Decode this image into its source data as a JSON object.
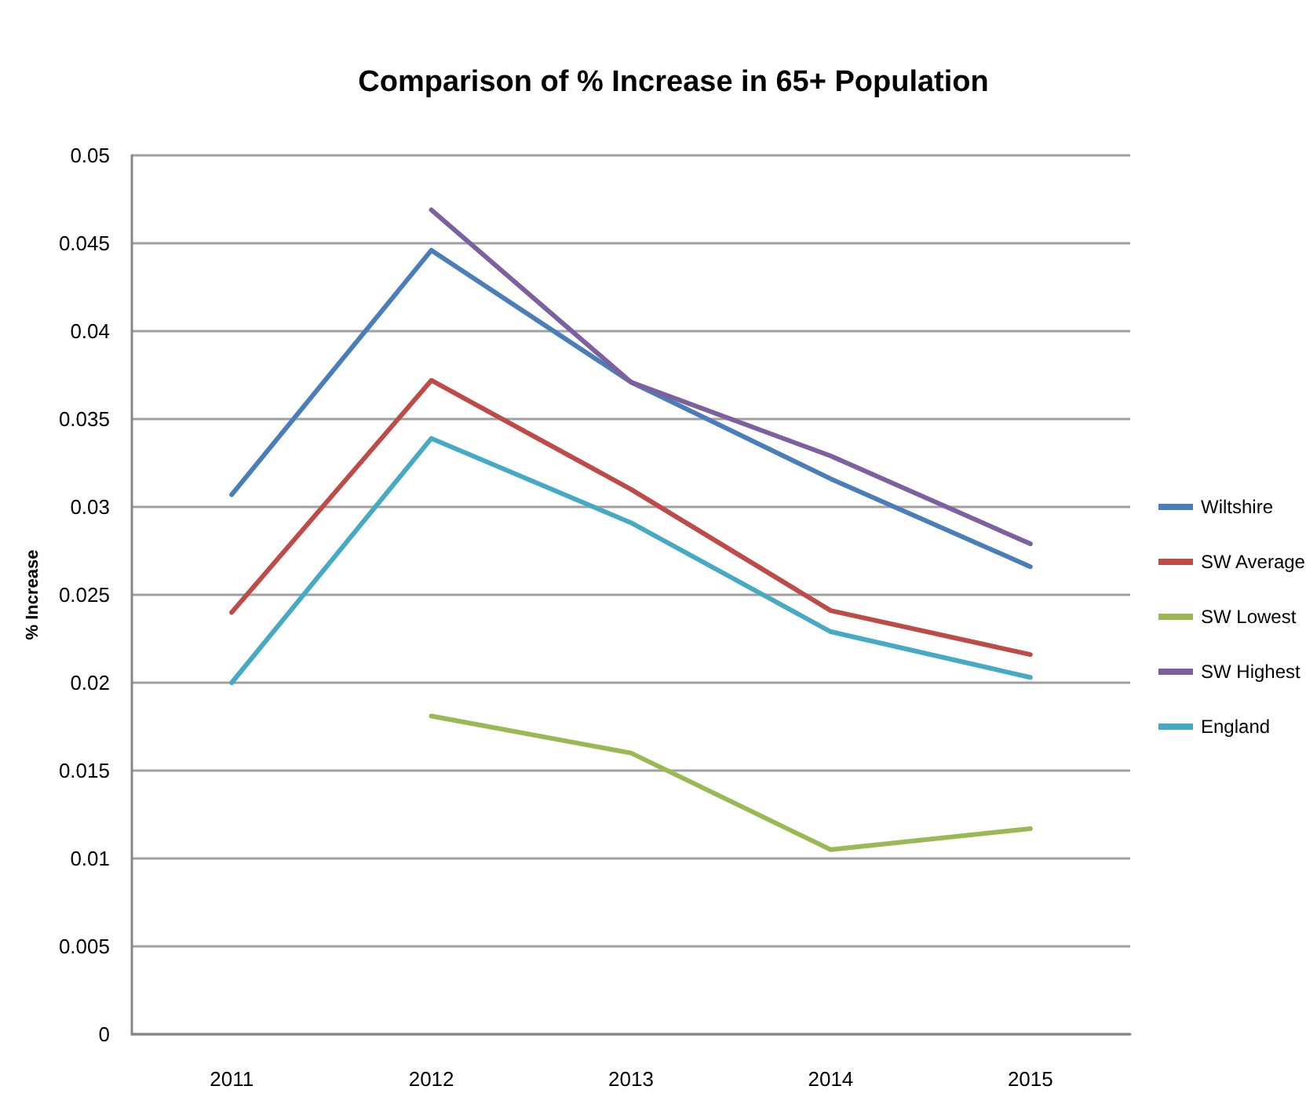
{
  "chart_data": {
    "type": "line",
    "title": "Comparison of % Increase in 65+ Population",
    "ylabel": "% Increase",
    "categories": [
      "2011",
      "2012",
      "2013",
      "2014",
      "2015"
    ],
    "series": [
      {
        "name": "Wiltshire",
        "color": "#4a7ebb",
        "values": [
          0.0307,
          0.0446,
          0.0371,
          0.0316,
          0.0266
        ]
      },
      {
        "name": "SW Average",
        "color": "#be4b48",
        "values": [
          0.024,
          0.0372,
          0.031,
          0.0241,
          0.0216
        ]
      },
      {
        "name": "SW Lowest",
        "color": "#98b954",
        "values": [
          null,
          0.0181,
          0.016,
          0.0105,
          0.0117
        ]
      },
      {
        "name": "SW Highest",
        "color": "#7d60a0",
        "values": [
          null,
          0.0469,
          0.0371,
          0.0329,
          0.0279
        ]
      },
      {
        "name": "England",
        "color": "#46aac5",
        "values": [
          0.02,
          0.0339,
          0.0291,
          0.0229,
          0.0203
        ]
      }
    ],
    "ylim": [
      0,
      0.05
    ],
    "yticks": [
      0,
      0.005,
      0.01,
      0.015,
      0.02,
      0.025,
      0.03,
      0.035,
      0.04,
      0.045,
      0.05
    ],
    "grid": "y",
    "legend": "right",
    "marker": "none",
    "line_style": "solid"
  }
}
